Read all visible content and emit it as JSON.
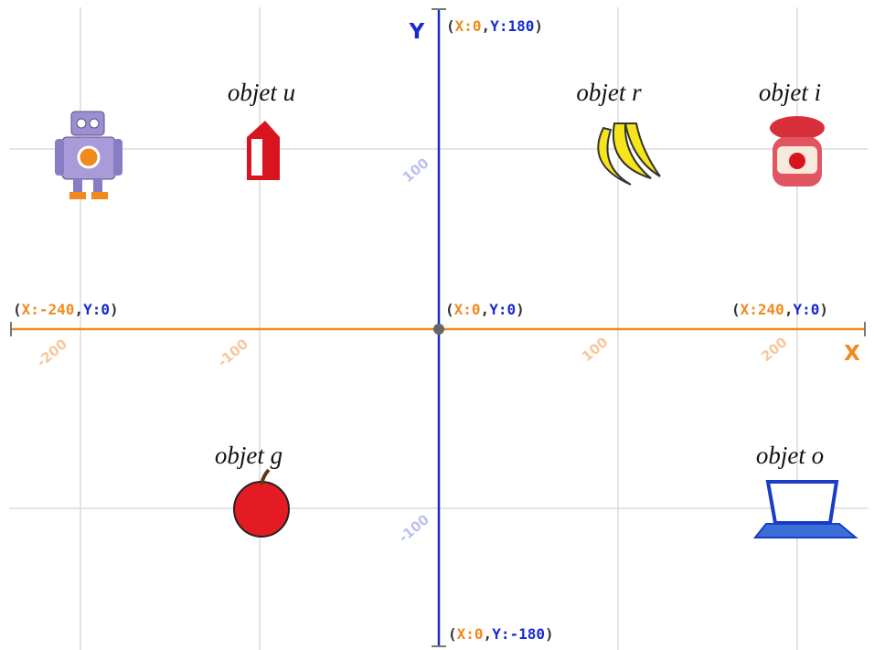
{
  "axes": {
    "x_label": "X",
    "y_label": "Y"
  },
  "coordinate_labels": [
    [
      "(",
      "X:0",
      ",",
      "Y:180",
      ")"
    ],
    [
      "(",
      "X:-240",
      ",",
      "Y:0",
      ")"
    ],
    [
      "(",
      "X:0",
      ",",
      "Y:0",
      ")"
    ],
    [
      "(",
      "X:240",
      ",",
      "Y:0",
      ")"
    ],
    [
      "(",
      "X:0",
      ",",
      "Y:-180",
      ")"
    ]
  ],
  "x_ticks": [
    "-200",
    "-100",
    "100",
    "200"
  ],
  "y_ticks": [
    "100",
    "-100"
  ],
  "objects": [
    "objet u",
    "objet r",
    "objet i",
    "objet g",
    "objet o"
  ]
}
